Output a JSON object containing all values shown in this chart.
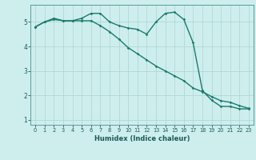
{
  "title": "",
  "xlabel": "Humidex (Indice chaleur)",
  "ylabel": "",
  "background_color": "#ceeeed",
  "line_color": "#1a7a6e",
  "grid_color": "#aed8d4",
  "x_values": [
    0,
    1,
    2,
    3,
    4,
    5,
    6,
    7,
    8,
    9,
    10,
    11,
    12,
    13,
    14,
    15,
    16,
    17,
    18,
    19,
    20,
    21,
    22,
    23
  ],
  "line1": [
    4.8,
    5.0,
    5.15,
    5.05,
    5.05,
    5.15,
    5.35,
    5.35,
    5.0,
    4.85,
    4.75,
    4.7,
    4.5,
    5.0,
    5.35,
    5.4,
    5.1,
    4.15,
    2.2,
    1.8,
    1.55,
    1.55,
    1.45,
    1.45
  ],
  "line2": [
    4.8,
    5.0,
    5.1,
    5.05,
    5.05,
    5.05,
    5.05,
    4.85,
    4.6,
    4.3,
    3.95,
    3.7,
    3.45,
    3.2,
    3.0,
    2.8,
    2.6,
    2.3,
    2.15,
    1.95,
    1.78,
    1.72,
    1.58,
    1.47
  ],
  "ylim": [
    0.8,
    5.7
  ],
  "xlim": [
    -0.5,
    23.5
  ],
  "yticks": [
    1,
    2,
    3,
    4,
    5
  ],
  "xticks": [
    0,
    1,
    2,
    3,
    4,
    5,
    6,
    7,
    8,
    9,
    10,
    11,
    12,
    13,
    14,
    15,
    16,
    17,
    18,
    19,
    20,
    21,
    22,
    23
  ],
  "marker": "D",
  "marker_size": 1.8,
  "line_width": 1.0
}
